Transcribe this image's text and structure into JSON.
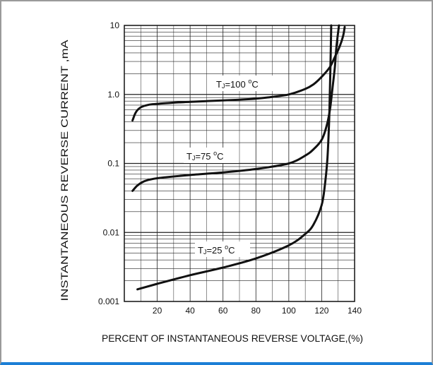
{
  "chart_data": {
    "type": "line",
    "title": "",
    "xlabel": "PERCENT OF INSTANTANEOUS REVERSE VOLTAGE,(%)",
    "ylabel": "INSTANTANEOUS REVERSE CURRENT ,mA",
    "xlim": [
      0,
      140
    ],
    "ylim": [
      0.001,
      10
    ],
    "yscale": "log",
    "grid": true,
    "x_ticks": [
      "20",
      "40",
      "60",
      "80",
      "100",
      "120",
      "140"
    ],
    "y_ticks": [
      "0.001",
      "0.01",
      "0.1",
      "1.0",
      "10"
    ],
    "curve_labels": [
      {
        "main": "T",
        "sub": "J",
        "rest": "=100 ",
        "deg": "o",
        "unit": "C"
      },
      {
        "main": "T",
        "sub": "J",
        "rest": "=75 ",
        "deg": "o",
        "unit": "C"
      },
      {
        "main": "T",
        "sub": "J",
        "rest": "=25 ",
        "deg": "o",
        "unit": "C"
      }
    ],
    "series": [
      {
        "x": [
          5,
          7,
          10,
          15,
          20,
          30,
          40,
          50,
          60,
          70,
          80,
          90,
          100,
          110,
          115,
          120,
          125,
          128,
          131,
          133,
          134
        ],
        "y": [
          0.42,
          0.55,
          0.65,
          0.71,
          0.73,
          0.76,
          0.78,
          0.8,
          0.82,
          0.84,
          0.87,
          0.92,
          1.0,
          1.2,
          1.4,
          1.8,
          2.5,
          3.5,
          5.0,
          7.0,
          9.5
        ]
      },
      {
        "x": [
          5,
          8,
          12,
          18,
          25,
          40,
          60,
          80,
          100,
          110,
          115,
          120,
          123,
          125,
          126.5,
          128,
          129,
          130.5
        ],
        "y": [
          0.04,
          0.048,
          0.055,
          0.06,
          0.063,
          0.068,
          0.074,
          0.083,
          0.1,
          0.13,
          0.16,
          0.22,
          0.35,
          0.6,
          1.2,
          2.5,
          5.0,
          10
        ]
      },
      {
        "x": [
          8,
          20,
          40,
          60,
          80,
          100,
          110,
          115,
          120,
          122,
          123.5,
          124.5,
          125,
          125.5,
          125.8
        ],
        "y": [
          0.0015,
          0.0018,
          0.0024,
          0.0031,
          0.0042,
          0.0065,
          0.0095,
          0.013,
          0.025,
          0.05,
          0.12,
          0.4,
          1.2,
          4.0,
          10
        ]
      }
    ]
  }
}
